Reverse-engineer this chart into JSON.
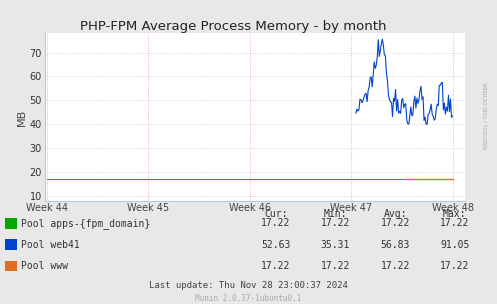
{
  "title": "PHP-FPM Average Process Memory - by month",
  "ylabel": "MB",
  "background_color": "#e8e8e8",
  "plot_bg_color": "#ffffff",
  "x_tick_labels": [
    "Week 44",
    "Week 45",
    "Week 46",
    "Week 47",
    "Week 48"
  ],
  "ylim": [
    8,
    78
  ],
  "yticks": [
    10,
    20,
    30,
    40,
    50,
    60,
    70
  ],
  "legend_entries": [
    {
      "label": "Pool apps-{fpm_domain}",
      "color": "#00aa00"
    },
    {
      "label": "Pool web41",
      "color": "#0044cc"
    },
    {
      "label": "Pool www",
      "color": "#e07020"
    }
  ],
  "table_headers": [
    "Cur:",
    "Min:",
    "Avg:",
    "Max:"
  ],
  "table_data": [
    [
      "17.22",
      "17.22",
      "17.22",
      "17.22"
    ],
    [
      "52.63",
      "35.31",
      "56.83",
      "91.05"
    ],
    [
      "17.22",
      "17.22",
      "17.22",
      "17.22"
    ]
  ],
  "footer": "Last update: Thu Nov 28 23:00:37 2024",
  "munin_version": "Munin 2.0.37-1ubuntu0.1",
  "rrdtool_label": "RRDTOOL / TOBI OETIKER"
}
